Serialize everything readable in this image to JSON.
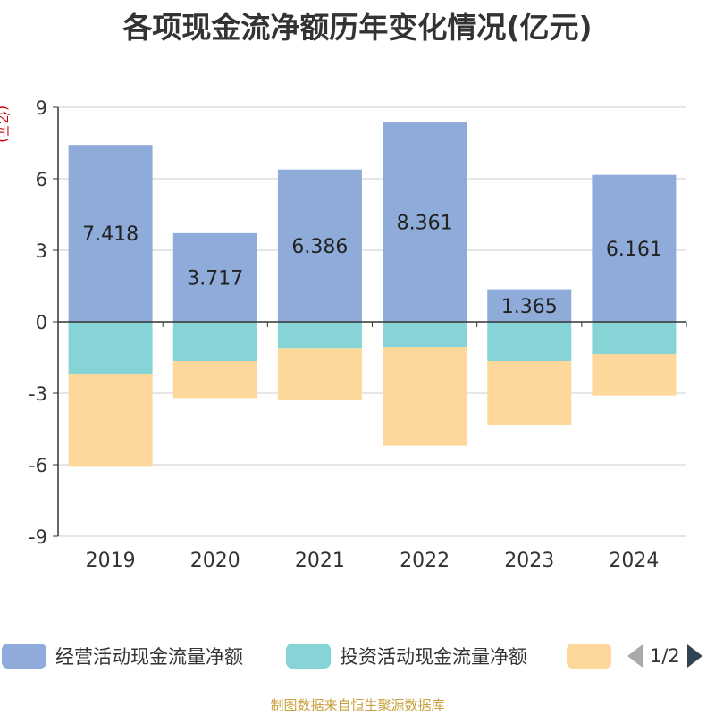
{
  "title": "各项现金流净额历年变化情况(亿元)",
  "unit_label": "(亿元)",
  "footer": "制图数据来自恒生聚源数据库",
  "legend": {
    "items": [
      {
        "label": "经营活动现金流量净额",
        "color": "#8eabd9"
      },
      {
        "label": "投资活动现金流量净额",
        "color": "#86d4d6"
      },
      {
        "label": "",
        "color": "#fdd89a"
      }
    ],
    "page": "1/2"
  },
  "chart_data": {
    "type": "bar",
    "stacked": true,
    "categories": [
      "2019",
      "2020",
      "2021",
      "2022",
      "2023",
      "2024"
    ],
    "series": [
      {
        "name": "经营活动现金流量净额",
        "color": "#8eabd9",
        "values": [
          7.418,
          3.717,
          6.386,
          8.361,
          1.365,
          6.161
        ],
        "labels": [
          "7.418",
          "3.717",
          "6.386",
          "8.361",
          "1.365",
          "6.161"
        ]
      },
      {
        "name": "投资活动现金流量净额",
        "color": "#86d4d6",
        "values": [
          -2.2,
          -1.65,
          -1.1,
          -1.05,
          -1.65,
          -1.35
        ]
      },
      {
        "color": "#fdd89a",
        "values": [
          -3.85,
          -1.55,
          -2.2,
          -4.15,
          -2.7,
          -1.75
        ]
      }
    ],
    "yticks": [
      "9",
      "6",
      "3",
      "0",
      "-3",
      "-6",
      "-9"
    ],
    "ylim": [
      -9,
      9
    ],
    "grid": true
  }
}
